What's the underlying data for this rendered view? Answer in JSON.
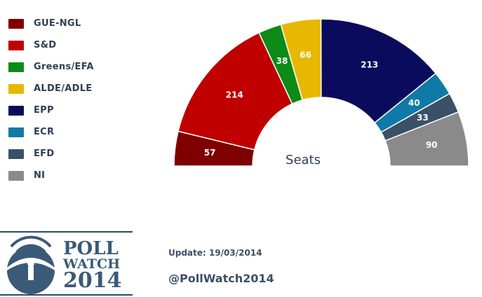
{
  "chart_data": {
    "type": "pie",
    "variant": "semicircle-parliament",
    "center_label": "Seats",
    "legend_position": "left",
    "series": [
      {
        "name": "GUE-NGL",
        "value": 57,
        "color": "#7f0000"
      },
      {
        "name": "S&D",
        "value": 214,
        "color": "#c00000"
      },
      {
        "name": "Greens/EFA",
        "value": 38,
        "color": "#0e8a16"
      },
      {
        "name": "ALDE/ADLE",
        "value": 66,
        "color": "#e8b800"
      },
      {
        "name": "EPP",
        "value": 213,
        "color": "#0b0b5e"
      },
      {
        "name": "ECR",
        "value": 40,
        "color": "#0f7aa8"
      },
      {
        "name": "EFD",
        "value": 33,
        "color": "#3a5068"
      },
      {
        "name": "NI",
        "value": 90,
        "color": "#8a8a8a"
      }
    ]
  },
  "logo": {
    "line1": "POLL",
    "line2": "WATCH",
    "line3": "2014",
    "icon": "wifi-globe-icon"
  },
  "footer": {
    "update": "Update: 19/03/2014",
    "handle": "@PollWatch2014"
  }
}
